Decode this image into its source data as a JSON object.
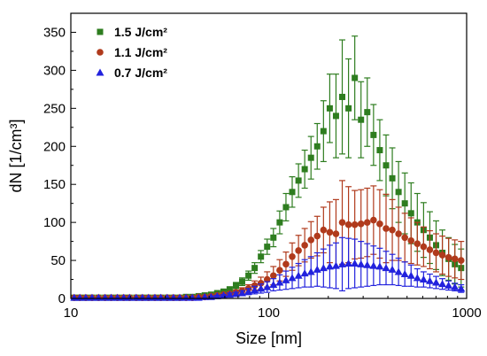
{
  "chart_data": {
    "type": "scatter",
    "xlabel": "Size [nm]",
    "ylabel": "dN [1/cm³]",
    "xscale": "log",
    "xlim": [
      10,
      1000
    ],
    "ylim": [
      0,
      375
    ],
    "xticks": [
      10,
      100,
      1000
    ],
    "xtick_labels": [
      "10",
      "100",
      "1000"
    ],
    "yticks": [
      0,
      50,
      100,
      150,
      200,
      250,
      300,
      350
    ],
    "ytick_labels": [
      "0",
      "50",
      "100",
      "150",
      "200",
      "250",
      "300",
      "350"
    ],
    "grid": false,
    "legend_position": "top-left",
    "x": [
      10.4,
      11.1,
      11.9,
      12.8,
      13.8,
      14.9,
      16.0,
      17.2,
      18.5,
      19.8,
      21.4,
      23.0,
      24.7,
      26.6,
      28.5,
      30.7,
      33.0,
      35.5,
      38.2,
      41.1,
      44.2,
      47.5,
      51.1,
      54.9,
      59.1,
      63.5,
      68.3,
      73.4,
      79.0,
      84.9,
      91.3,
      98.2,
      105.6,
      113.6,
      122.2,
      131.4,
      141.4,
      152.0,
      163.5,
      175.8,
      189.1,
      203.4,
      218.7,
      235.2,
      253.0,
      272.1,
      292.6,
      314.7,
      338.5,
      364.0,
      391.6,
      421.1,
      452.9,
      487.1,
      523.9,
      563.4,
      606.0,
      651.7,
      701.0,
      753.9,
      810.8,
      872.0,
      937.9
    ],
    "series": [
      {
        "name": "1.5 J/cm²",
        "color": "#2e7d1f",
        "marker": "square",
        "values": [
          1,
          1,
          1,
          1,
          1,
          1,
          1,
          1,
          1,
          1,
          1,
          1,
          1,
          1,
          1,
          1,
          1,
          1,
          2,
          2,
          3,
          4,
          5,
          7,
          9,
          12,
          17,
          22,
          30,
          40,
          55,
          68,
          80,
          100,
          120,
          140,
          155,
          170,
          185,
          200,
          220,
          250,
          240,
          265,
          250,
          290,
          235,
          245,
          215,
          195,
          175,
          158,
          140,
          125,
          112,
          100,
          90,
          80,
          70,
          60,
          52,
          45,
          40
        ],
        "err": [
          0,
          0,
          0,
          0,
          0,
          0,
          0,
          0,
          0,
          0,
          0,
          0,
          0,
          0,
          0,
          0,
          0,
          0,
          0,
          1,
          1,
          1,
          1,
          2,
          2,
          3,
          4,
          5,
          6,
          7,
          8,
          10,
          12,
          15,
          18,
          20,
          22,
          25,
          28,
          30,
          40,
          45,
          55,
          75,
          65,
          55,
          50,
          45,
          40,
          40,
          40,
          40,
          40,
          40,
          40,
          38,
          36,
          34,
          32,
          30,
          28,
          26,
          25
        ]
      },
      {
        "name": "1.1 J/cm²",
        "color": "#b03a1c",
        "marker": "circle",
        "values": [
          1,
          1,
          1,
          1,
          1,
          1,
          1,
          1,
          1,
          1,
          1,
          1,
          1,
          1,
          1,
          1,
          1,
          1,
          1,
          1,
          2,
          2,
          3,
          4,
          5,
          6,
          8,
          10,
          13,
          17,
          20,
          25,
          30,
          37,
          45,
          55,
          63,
          70,
          77,
          82,
          90,
          87,
          85,
          100,
          97,
          97,
          98,
          100,
          103,
          98,
          92,
          90,
          85,
          80,
          76,
          72,
          68,
          64,
          60,
          57,
          54,
          52,
          50
        ],
        "err": [
          0,
          0,
          0,
          0,
          0,
          0,
          0,
          0,
          0,
          0,
          0,
          0,
          0,
          0,
          0,
          0,
          0,
          0,
          0,
          0,
          0,
          1,
          1,
          1,
          2,
          2,
          3,
          4,
          5,
          6,
          8,
          10,
          12,
          14,
          16,
          18,
          20,
          22,
          24,
          26,
          30,
          40,
          45,
          55,
          50,
          45,
          45,
          45,
          45,
          45,
          45,
          40,
          35,
          32,
          30,
          28,
          26,
          25,
          25,
          25,
          25,
          25,
          25
        ]
      },
      {
        "name": "0.7 J/cm²",
        "color": "#2222dd",
        "marker": "triangle",
        "values": [
          1,
          1,
          1,
          1,
          1,
          1,
          1,
          1,
          1,
          1,
          1,
          1,
          1,
          1,
          1,
          1,
          1,
          1,
          1,
          1,
          1,
          2,
          2,
          3,
          4,
          5,
          6,
          7,
          9,
          11,
          13,
          15,
          18,
          21,
          24,
          27,
          30,
          33,
          35,
          38,
          40,
          42,
          43,
          45,
          46,
          46,
          45,
          44,
          43,
          42,
          40,
          38,
          35,
          32,
          30,
          27,
          25,
          23,
          21,
          19,
          17,
          15,
          13
        ],
        "err": [
          0,
          0,
          0,
          0,
          0,
          0,
          0,
          0,
          0,
          0,
          0,
          0,
          0,
          0,
          0,
          0,
          0,
          0,
          0,
          0,
          0,
          0,
          1,
          1,
          1,
          2,
          2,
          3,
          4,
          5,
          6,
          7,
          8,
          10,
          12,
          14,
          16,
          18,
          20,
          22,
          25,
          28,
          30,
          35,
          33,
          32,
          30,
          28,
          26,
          24,
          22,
          20,
          18,
          16,
          14,
          12,
          10,
          9,
          8,
          7,
          6,
          5,
          5
        ]
      }
    ]
  }
}
